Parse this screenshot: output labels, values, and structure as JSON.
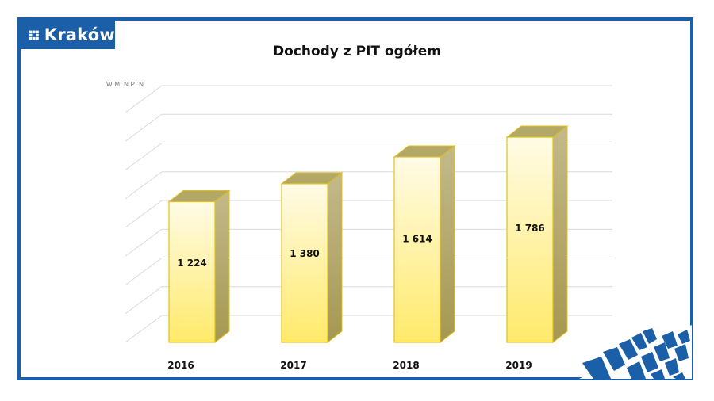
{
  "logo": {
    "text": "Kraków"
  },
  "chart_data": {
    "type": "bar",
    "title": "Dochody z PIT ogółem",
    "unit_label": "W MLN PLN",
    "categories": [
      "2016",
      "2017",
      "2018",
      "2019"
    ],
    "values": [
      1224,
      1380,
      1614,
      1786
    ],
    "value_labels": [
      "1 224",
      "1 380",
      "1 614",
      "1 786"
    ],
    "ylim": [
      0,
      2000
    ],
    "grid": true,
    "style": "3d",
    "colors": {
      "bar_top": "#fffbe6",
      "bar_bottom": "#ffea6a",
      "bar_side": "#b8ab6e",
      "bar_edge": "#e0c020",
      "grid": "#d9d9d9",
      "frame": "#1b5fa8"
    }
  }
}
